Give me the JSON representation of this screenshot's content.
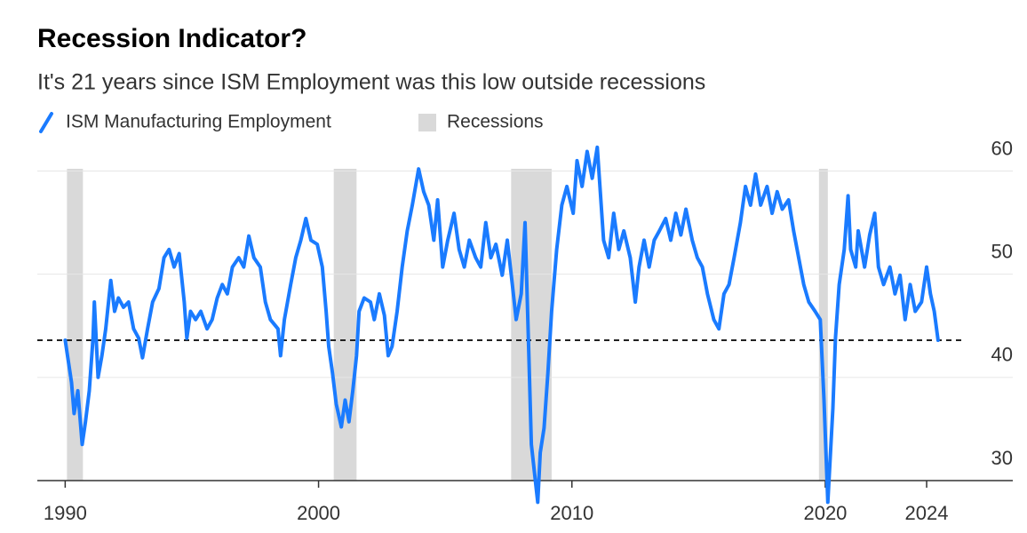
{
  "chart_data": {
    "type": "line",
    "title": "Recession Indicator?",
    "subtitle": "It's 21 years since ISM Employment was this low outside recessions",
    "x": [
      1990.0,
      1990.25,
      1990.35,
      1990.5,
      1990.67,
      1990.8,
      1990.95,
      1991.1,
      1991.15,
      1991.3,
      1991.45,
      1991.6,
      1991.8,
      1991.95,
      1992.1,
      1992.3,
      1992.5,
      1992.7,
      1992.9,
      1993.05,
      1993.25,
      1993.45,
      1993.7,
      1993.9,
      1994.1,
      1994.3,
      1994.5,
      1994.7,
      1994.8,
      1994.95,
      1995.15,
      1995.35,
      1995.6,
      1995.8,
      1996.0,
      1996.2,
      1996.4,
      1996.6,
      1996.85,
      1997.05,
      1997.25,
      1997.45,
      1997.7,
      1997.9,
      1998.1,
      1998.4,
      1998.5,
      1998.65,
      1998.9,
      1999.1,
      1999.3,
      1999.5,
      1999.7,
      1999.95,
      2000.15,
      2000.3,
      2000.4,
      2000.55,
      2000.7,
      2000.9,
      2001.05,
      2001.2,
      2001.35,
      2001.5,
      2001.6,
      2001.8,
      2002.05,
      2002.2,
      2002.4,
      2002.6,
      2002.75,
      2002.9,
      2003.1,
      2003.3,
      2003.5,
      2003.7,
      2003.95,
      2004.15,
      2004.35,
      2004.55,
      2004.7,
      2004.9,
      2005.1,
      2005.35,
      2005.55,
      2005.75,
      2005.95,
      2006.2,
      2006.4,
      2006.6,
      2006.8,
      2007.0,
      2007.25,
      2007.45,
      2007.65,
      2007.8,
      2008.0,
      2008.15,
      2008.3,
      2008.4,
      2008.65,
      2008.75,
      2008.9,
      2009.05,
      2009.2,
      2009.4,
      2009.6,
      2009.8,
      2010.05,
      2010.2,
      2010.4,
      2010.6,
      2010.8,
      2011.0,
      2011.25,
      2011.45,
      2011.65,
      2011.85,
      2012.05,
      2012.3,
      2012.5,
      2012.65,
      2012.85,
      2013.05,
      2013.25,
      2013.45,
      2013.7,
      2013.9,
      2014.1,
      2014.3,
      2014.5,
      2014.75,
      2014.95,
      2015.15,
      2015.35,
      2015.6,
      2015.8,
      2016.0,
      2016.2,
      2016.4,
      2016.65,
      2016.85,
      2017.05,
      2017.25,
      2017.45,
      2017.7,
      2017.9,
      2018.1,
      2018.3,
      2018.55,
      2018.75,
      2018.95,
      2019.15,
      2019.35,
      2019.6,
      2019.8,
      2019.95,
      2020.1,
      2020.3,
      2020.4,
      2020.55,
      2020.75,
      2020.9,
      2021.0,
      2021.2,
      2021.3,
      2021.55,
      2021.75,
      2021.95,
      2022.1,
      2022.3,
      2022.55,
      2022.75,
      2022.95,
      2023.15,
      2023.35,
      2023.55,
      2023.8,
      2024.0,
      2024.15,
      2024.3,
      2024.45
    ],
    "series": [
      {
        "name": "ISM Manufacturing Employment",
        "color": "#1a7bff",
        "values": [
          43.6,
          39.5,
          36.5,
          38.7,
          33.5,
          35.7,
          38.7,
          43.8,
          47.3,
          40,
          42.1,
          44.7,
          49.4,
          46.4,
          47.7,
          46.8,
          47.3,
          44.7,
          43.8,
          41.9,
          44.7,
          47.3,
          48.6,
          51.6,
          52.4,
          50.7,
          52,
          47.3,
          43.8,
          46.4,
          45.6,
          46.4,
          44.7,
          45.6,
          47.7,
          49,
          48.1,
          50.7,
          51.6,
          50.7,
          53.7,
          51.6,
          50.7,
          47.3,
          45.6,
          44.7,
          42.1,
          45.6,
          49,
          51.6,
          53.3,
          55.4,
          53.3,
          52.9,
          50.7,
          46.4,
          43,
          40.4,
          37.4,
          35.2,
          37.8,
          35.7,
          38.7,
          42.1,
          46.4,
          47.7,
          47.3,
          45.6,
          48.1,
          46,
          42.1,
          43,
          46.4,
          50.7,
          54.2,
          56.7,
          60.2,
          58,
          56.7,
          53.3,
          57.2,
          50.7,
          53.3,
          55.9,
          52.4,
          50.7,
          53.3,
          51.6,
          50.7,
          55,
          51.6,
          52.9,
          49.9,
          53.3,
          49,
          45.6,
          48.1,
          55,
          42.1,
          33.5,
          27.9,
          32.7,
          35.1,
          40.4,
          46.4,
          52.4,
          56.7,
          58.5,
          55.9,
          61,
          58.5,
          61.9,
          59.3,
          62.3,
          53.3,
          51.6,
          55.9,
          52.4,
          54.2,
          51.6,
          47.3,
          50.7,
          53.3,
          50.7,
          53.3,
          54.2,
          55.4,
          53.3,
          55.9,
          53.8,
          56.3,
          53.3,
          51.6,
          50.7,
          48.1,
          45.6,
          44.7,
          48.1,
          49,
          51.6,
          55,
          58.5,
          56.7,
          59.7,
          56.7,
          58.5,
          55.9,
          58,
          56.3,
          57.2,
          54.2,
          51.6,
          49,
          47.3,
          46.4,
          45.6,
          37.8,
          27.9,
          37,
          43.8,
          49,
          52.4,
          57.6,
          52.4,
          50.7,
          54.2,
          50.7,
          53.8,
          55.9,
          50.7,
          49,
          50.7,
          48.1,
          49.9,
          45.6,
          49,
          46.4,
          47.3,
          50.7,
          48.1,
          46.4,
          43.6
        ]
      }
    ],
    "recessions": {
      "name": "Recessions",
      "color": "#d9d9d9",
      "ranges": [
        [
          1990.07,
          1990.7
        ],
        [
          2000.6,
          2001.5
        ],
        [
          2007.6,
          2009.2
        ],
        [
          2019.75,
          2020.1
        ]
      ]
    },
    "reference_line": {
      "value": 43.6,
      "style": "dashed"
    },
    "xlim": [
      1988.9,
      2027.4
    ],
    "ylim": [
      30,
      62.8
    ],
    "xticks": [
      1990,
      2000,
      2010,
      2020,
      2024
    ],
    "yticks": [
      30,
      40,
      50,
      60
    ],
    "grid": true,
    "y_axis_side": "right"
  }
}
